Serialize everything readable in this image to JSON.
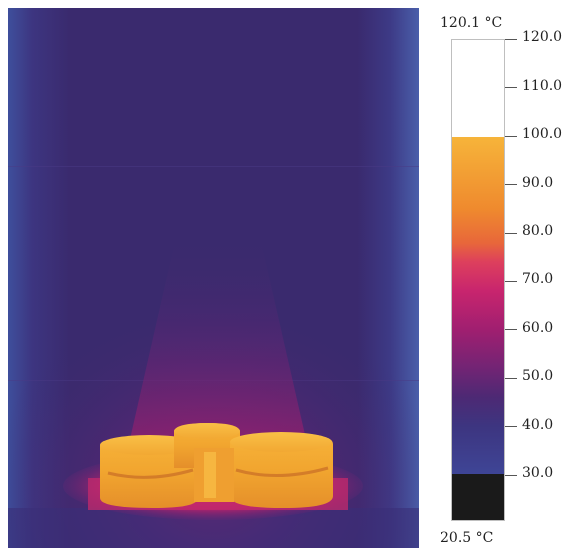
{
  "thermal_image": {
    "description_icon": "thermal-camera-image"
  },
  "scale": {
    "max_label": "120.1 °C",
    "min_label": "20.5 °C",
    "max_value": 120.1,
    "min_value": 20.5,
    "ticks": [
      "120.0",
      "110.0",
      "100.0",
      "90.0",
      "80.0",
      "70.0",
      "60.0",
      "50.0",
      "40.0",
      "30.0"
    ],
    "tick_values": [
      120,
      110,
      100,
      90,
      80,
      70,
      60,
      50,
      40,
      30
    ],
    "saturation_high": 100,
    "saturation_low": 30
  },
  "colors": {
    "background_dark": "#3a2a6e",
    "background_edge": "#3a4a96",
    "hot_object": "#f2a531",
    "warm_glow": "#b21f70",
    "saturated_high": "#ffffff",
    "saturated_low": "#1a1a1a"
  }
}
